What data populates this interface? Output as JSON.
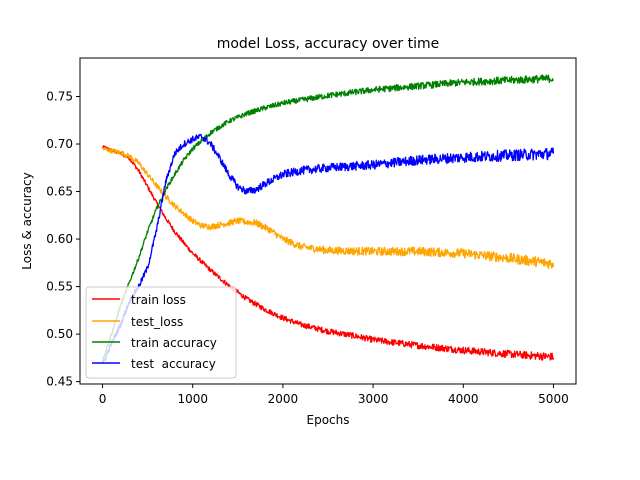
{
  "chart_data": {
    "type": "line",
    "title": "model Loss, accuracy over time",
    "xlabel": "Epochs",
    "ylabel": "Loss & accuracy",
    "xlim": [
      -250,
      5250
    ],
    "ylim": [
      0.4475,
      0.7905
    ],
    "xticks": [
      0,
      1000,
      2000,
      3000,
      4000,
      5000
    ],
    "xtick_labels": [
      "0",
      "1000",
      "2000",
      "3000",
      "4000",
      "5000"
    ],
    "yticks": [
      0.45,
      0.5,
      0.55,
      0.6,
      0.65,
      0.7,
      0.75
    ],
    "ytick_labels": [
      "0.45",
      "0.50",
      "0.55",
      "0.60",
      "0.65",
      "0.70",
      "0.75"
    ],
    "grid": false,
    "legend_position": "lower-left",
    "series": [
      {
        "name": "train loss",
        "color": "#ff0000",
        "noise": 0.003,
        "points": [
          [
            0,
            0.697
          ],
          [
            200,
            0.69
          ],
          [
            300,
            0.685
          ],
          [
            400,
            0.672
          ],
          [
            500,
            0.655
          ],
          [
            600,
            0.638
          ],
          [
            700,
            0.622
          ],
          [
            800,
            0.608
          ],
          [
            900,
            0.596
          ],
          [
            1000,
            0.585
          ],
          [
            1200,
            0.567
          ],
          [
            1400,
            0.551
          ],
          [
            1600,
            0.537
          ],
          [
            1800,
            0.526
          ],
          [
            2000,
            0.517
          ],
          [
            2200,
            0.51
          ],
          [
            2500,
            0.503
          ],
          [
            2800,
            0.498
          ],
          [
            3000,
            0.494
          ],
          [
            3500,
            0.488
          ],
          [
            4000,
            0.483
          ],
          [
            4500,
            0.479
          ],
          [
            5000,
            0.476
          ]
        ]
      },
      {
        "name": "test_loss",
        "color": "#ffa500",
        "noise": 0.004,
        "points": [
          [
            0,
            0.695
          ],
          [
            200,
            0.691
          ],
          [
            300,
            0.687
          ],
          [
            400,
            0.68
          ],
          [
            500,
            0.668
          ],
          [
            600,
            0.656
          ],
          [
            700,
            0.645
          ],
          [
            800,
            0.635
          ],
          [
            900,
            0.627
          ],
          [
            1000,
            0.619
          ],
          [
            1100,
            0.614
          ],
          [
            1200,
            0.613
          ],
          [
            1400,
            0.617
          ],
          [
            1500,
            0.619
          ],
          [
            1700,
            0.617
          ],
          [
            1850,
            0.61
          ],
          [
            2000,
            0.6
          ],
          [
            2200,
            0.592
          ],
          [
            2500,
            0.588
          ],
          [
            3000,
            0.587
          ],
          [
            3500,
            0.587
          ],
          [
            4000,
            0.585
          ],
          [
            4500,
            0.58
          ],
          [
            5000,
            0.574
          ]
        ]
      },
      {
        "name": "train accuracy",
        "color": "#008000",
        "noise": 0.003,
        "points": [
          [
            0,
            0.472
          ],
          [
            100,
            0.5
          ],
          [
            200,
            0.53
          ],
          [
            300,
            0.555
          ],
          [
            400,
            0.58
          ],
          [
            500,
            0.608
          ],
          [
            600,
            0.632
          ],
          [
            700,
            0.652
          ],
          [
            800,
            0.668
          ],
          [
            900,
            0.683
          ],
          [
            1000,
            0.695
          ],
          [
            1200,
            0.712
          ],
          [
            1400,
            0.724
          ],
          [
            1600,
            0.732
          ],
          [
            1800,
            0.738
          ],
          [
            2000,
            0.743
          ],
          [
            2500,
            0.751
          ],
          [
            3000,
            0.757
          ],
          [
            3500,
            0.761
          ],
          [
            4000,
            0.765
          ],
          [
            4500,
            0.767
          ],
          [
            5000,
            0.769
          ]
        ]
      },
      {
        "name": "test  accuracy",
        "color": "#0000ff",
        "noise": 0.0045,
        "points": [
          [
            0,
            0.468
          ],
          [
            100,
            0.49
          ],
          [
            200,
            0.51
          ],
          [
            300,
            0.535
          ],
          [
            400,
            0.55
          ],
          [
            500,
            0.57
          ],
          [
            600,
            0.61
          ],
          [
            700,
            0.66
          ],
          [
            800,
            0.69
          ],
          [
            900,
            0.7
          ],
          [
            1000,
            0.705
          ],
          [
            1100,
            0.708
          ],
          [
            1200,
            0.7
          ],
          [
            1300,
            0.685
          ],
          [
            1400,
            0.668
          ],
          [
            1500,
            0.655
          ],
          [
            1600,
            0.65
          ],
          [
            1700,
            0.652
          ],
          [
            1800,
            0.658
          ],
          [
            2000,
            0.668
          ],
          [
            2200,
            0.672
          ],
          [
            2500,
            0.675
          ],
          [
            3000,
            0.678
          ],
          [
            3500,
            0.683
          ],
          [
            4000,
            0.686
          ],
          [
            4500,
            0.688
          ],
          [
            5000,
            0.69
          ]
        ]
      }
    ]
  }
}
